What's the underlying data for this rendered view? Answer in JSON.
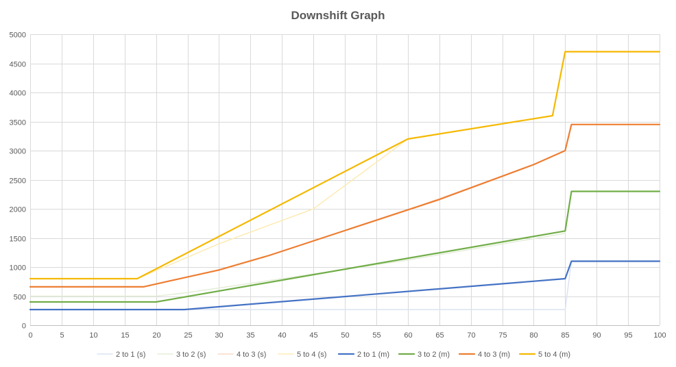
{
  "chart_data": {
    "type": "line",
    "title": "Downshift Graph",
    "xlabel": "",
    "ylabel": "",
    "xlim": [
      0,
      100
    ],
    "ylim": [
      0,
      5000
    ],
    "xticks": [
      0,
      5,
      10,
      15,
      20,
      25,
      30,
      35,
      40,
      45,
      50,
      55,
      60,
      65,
      70,
      75,
      80,
      85,
      90,
      95,
      100
    ],
    "yticks": [
      0,
      500,
      1000,
      1500,
      2000,
      2500,
      3000,
      3500,
      4000,
      4500,
      5000
    ],
    "grid": true,
    "legend_position": "bottom",
    "series": [
      {
        "name": "2 to 1 (s)",
        "color": "#dbe3f1",
        "width": 1.5,
        "points": [
          [
            0,
            270
          ],
          [
            25,
            270
          ],
          [
            85,
            270
          ],
          [
            86,
            1100
          ],
          [
            100,
            1100
          ]
        ]
      },
      {
        "name": "3 to 2 (s)",
        "color": "#e3edd8",
        "width": 1.5,
        "points": [
          [
            0,
            500
          ],
          [
            20,
            500
          ],
          [
            25,
            560
          ],
          [
            40,
            800
          ],
          [
            60,
            1120
          ],
          [
            85,
            1580
          ],
          [
            86,
            2300
          ],
          [
            100,
            2300
          ]
        ]
      },
      {
        "name": "4 to 3 (s)",
        "color": "#f8d8c4",
        "width": 1.5,
        "points": [
          [
            0,
            660
          ],
          [
            18,
            660
          ],
          [
            30,
            950
          ],
          [
            38,
            1200
          ],
          [
            60,
            1980
          ],
          [
            80,
            2760
          ],
          [
            85,
            3000
          ],
          [
            86,
            3450
          ],
          [
            100,
            3450
          ]
        ]
      },
      {
        "name": "5 to 4 (s)",
        "color": "#fdebb5",
        "width": 1.5,
        "points": [
          [
            0,
            800
          ],
          [
            17,
            800
          ],
          [
            30,
            1400
          ],
          [
            45,
            2000
          ],
          [
            60,
            3200
          ],
          [
            80,
            3550
          ],
          [
            83,
            3600
          ],
          [
            85,
            4700
          ],
          [
            100,
            4700
          ]
        ]
      },
      {
        "name": "2 to 1 (m)",
        "color": "#4472c4",
        "width": 2.2,
        "points": [
          [
            0,
            270
          ],
          [
            24.5,
            270
          ],
          [
            85,
            800
          ],
          [
            86,
            1100
          ],
          [
            100,
            1100
          ]
        ]
      },
      {
        "name": "3 to 2 (m)",
        "color": "#70ad47",
        "width": 2.2,
        "points": [
          [
            0,
            400
          ],
          [
            20,
            400
          ],
          [
            85,
            1620
          ],
          [
            86,
            2300
          ],
          [
            100,
            2300
          ]
        ]
      },
      {
        "name": "4 to 3 (m)",
        "color": "#ed7d31",
        "width": 2.2,
        "points": [
          [
            0,
            660
          ],
          [
            18,
            660
          ],
          [
            30,
            950
          ],
          [
            38,
            1200
          ],
          [
            65,
            2160
          ],
          [
            80,
            2760
          ],
          [
            85,
            3000
          ],
          [
            86,
            3450
          ],
          [
            100,
            3450
          ]
        ]
      },
      {
        "name": "5 to 4 (m)",
        "color": "#f5b800",
        "width": 2.2,
        "points": [
          [
            0,
            800
          ],
          [
            17,
            800
          ],
          [
            60,
            3200
          ],
          [
            83,
            3600
          ],
          [
            85,
            4700
          ],
          [
            100,
            4700
          ]
        ]
      }
    ]
  }
}
